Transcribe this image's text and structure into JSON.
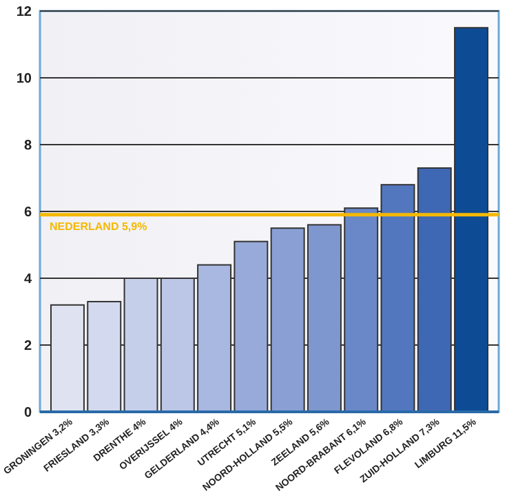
{
  "chart_data": {
    "type": "bar",
    "categories": [
      "GRONINGEN 3,2%",
      "FRIESLAND 3,3%",
      "DRENTHE 4%",
      "OVERIJSSEL 4%",
      "GELDERLAND 4,4%",
      "UTRECHT 5,1%",
      "NOORD-HOLLAND 5,5%",
      "ZEELAND 5,6%",
      "NOORD-BRABANT 6,1%",
      "FLEVOLAND 6,8%",
      "ZUID-HOLLAND 7,3%",
      "LIMBURG 11,5%"
    ],
    "values": [
      3.2,
      3.3,
      4,
      4,
      4.4,
      5.1,
      5.5,
      5.6,
      6.1,
      6.8,
      7.3,
      11.5
    ],
    "colors": [
      "#dfe3f1",
      "#d3d9ee",
      "#c6cfea",
      "#bcc7e7",
      "#a9b8e0",
      "#98aad9",
      "#8aa0d4",
      "#7f97cf",
      "#6a88c8",
      "#5377bf",
      "#3f68b4",
      "#0d4c94"
    ],
    "ylim": [
      0,
      12
    ],
    "yticks": [
      0,
      2,
      4,
      6,
      8,
      10,
      12
    ],
    "grid": "y",
    "ref_lines": [
      {
        "axis": "y",
        "value": 5.9,
        "label": "NEDERLAND 5,9%",
        "color": "#f5b800"
      }
    ]
  }
}
